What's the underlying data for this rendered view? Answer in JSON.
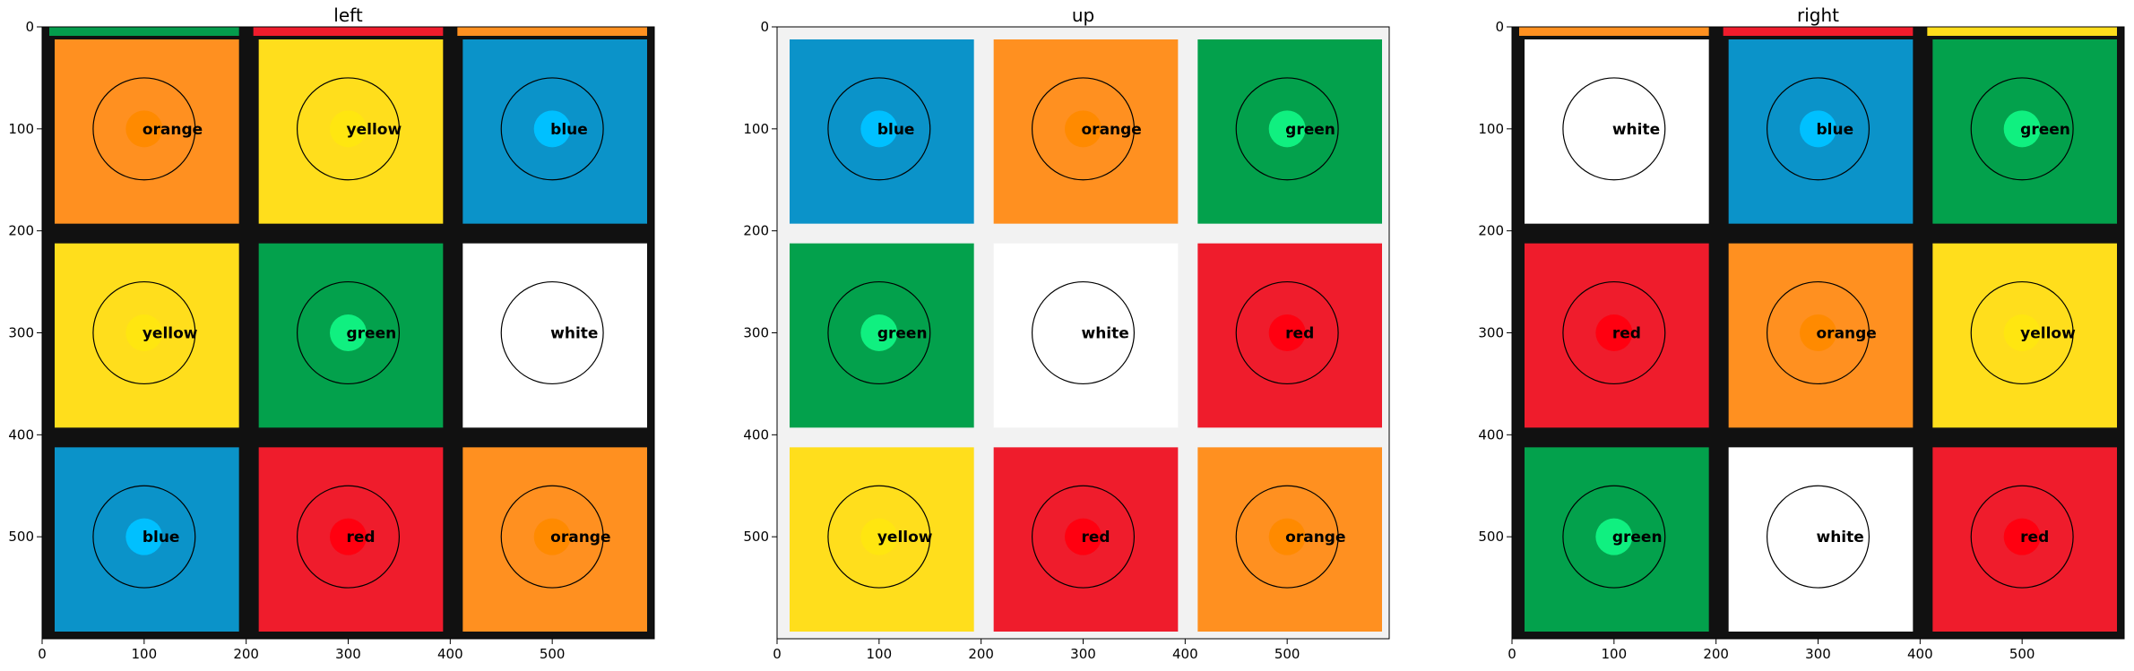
{
  "figure": {
    "panels": [
      {
        "title": "left",
        "background": "#111111",
        "top_strip": [
          "#049c4c",
          "#ef1c2c",
          "#ff9020"
        ],
        "cells": [
          {
            "fill": "#ff9020",
            "marker": "#ff8a00",
            "label": "orange"
          },
          {
            "fill": "#ffde1c",
            "marker": "#ffe610",
            "label": "yellow"
          },
          {
            "fill": "#0b93c9",
            "marker": "#00c0ff",
            "label": "blue"
          },
          {
            "fill": "#ffde1c",
            "marker": "#ffe610",
            "label": "yellow"
          },
          {
            "fill": "#03a14c",
            "marker": "#10f080",
            "label": "green"
          },
          {
            "fill": "#ffffff",
            "marker": "#ffffff",
            "label": "white"
          },
          {
            "fill": "#0b93c9",
            "marker": "#00c0ff",
            "label": "blue"
          },
          {
            "fill": "#ef1c2c",
            "marker": "#ff0010",
            "label": "red"
          },
          {
            "fill": "#ff9020",
            "marker": "#ff8a00",
            "label": "orange"
          }
        ],
        "x_ticks": [
          "0",
          "100",
          "200",
          "300",
          "400",
          "500"
        ],
        "y_ticks": [
          "0",
          "100",
          "200",
          "300",
          "400",
          "500"
        ]
      },
      {
        "title": "up",
        "background": "#f2f2f2",
        "top_strip": [],
        "cells": [
          {
            "fill": "#0b93c9",
            "marker": "#00c0ff",
            "label": "blue"
          },
          {
            "fill": "#ff9020",
            "marker": "#ff8a00",
            "label": "orange"
          },
          {
            "fill": "#03a14c",
            "marker": "#10f080",
            "label": "green"
          },
          {
            "fill": "#03a14c",
            "marker": "#10f080",
            "label": "green"
          },
          {
            "fill": "#ffffff",
            "marker": "#ffffff",
            "label": "white"
          },
          {
            "fill": "#ef1c2c",
            "marker": "#ff0010",
            "label": "red"
          },
          {
            "fill": "#ffde1c",
            "marker": "#ffe610",
            "label": "yellow"
          },
          {
            "fill": "#ef1c2c",
            "marker": "#ff0010",
            "label": "red"
          },
          {
            "fill": "#ff9020",
            "marker": "#ff8a00",
            "label": "orange"
          }
        ],
        "x_ticks": [
          "0",
          "100",
          "200",
          "300",
          "400",
          "500"
        ],
        "y_ticks": [
          "0",
          "100",
          "200",
          "300",
          "400",
          "500"
        ]
      },
      {
        "title": "right",
        "background": "#111111",
        "top_strip": [
          "#ff9020",
          "#ef1c2c",
          "#ffde1c"
        ],
        "cells": [
          {
            "fill": "#ffffff",
            "marker": "#ffffff",
            "label": "white"
          },
          {
            "fill": "#0b93c9",
            "marker": "#00c0ff",
            "label": "blue"
          },
          {
            "fill": "#03a14c",
            "marker": "#10f080",
            "label": "green"
          },
          {
            "fill": "#ef1c2c",
            "marker": "#ff0010",
            "label": "red"
          },
          {
            "fill": "#ff9020",
            "marker": "#ff8a00",
            "label": "orange"
          },
          {
            "fill": "#ffde1c",
            "marker": "#ffe610",
            "label": "yellow"
          },
          {
            "fill": "#03a14c",
            "marker": "#10f080",
            "label": "green"
          },
          {
            "fill": "#ffffff",
            "marker": "#ffffff",
            "label": "white"
          },
          {
            "fill": "#ef1c2c",
            "marker": "#ff0010",
            "label": "red"
          }
        ],
        "x_ticks": [
          "0",
          "100",
          "200",
          "300",
          "400",
          "500"
        ],
        "y_ticks": [
          "0",
          "100",
          "200",
          "300",
          "400",
          "500"
        ]
      }
    ]
  }
}
